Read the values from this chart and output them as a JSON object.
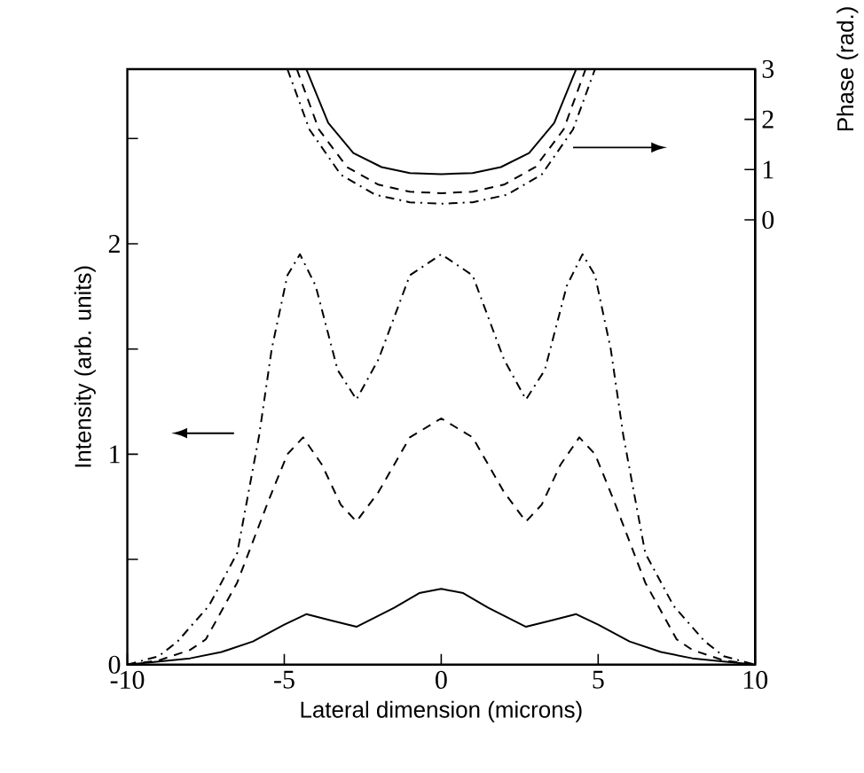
{
  "chart_data": {
    "type": "line",
    "xlabel": "Lateral dimension (microns)",
    "ylabel": "Intensity (arb. units)",
    "y2label": "Phase (rad.)",
    "xlim": [
      -10,
      10
    ],
    "xticks": [
      -10,
      -5,
      0,
      5,
      10
    ],
    "ylim": [
      0,
      2.83
    ],
    "yticks": [
      0,
      {
        "value": 0.5,
        "label": null
      },
      1,
      {
        "value": 1.5,
        "label": null
      },
      2,
      {
        "value": 2.5,
        "label": null
      }
    ],
    "y2lim": [
      -8.85,
      3
    ],
    "y2ticks": [
      0,
      1,
      2,
      3
    ],
    "series": [
      {
        "color": "#000000",
        "line_style": "solid",
        "x": [
          -10,
          -8,
          -7,
          -6,
          -5,
          -4.3,
          -3.5,
          -2.7,
          -1.5,
          -0.7,
          0,
          0.7,
          1.5,
          2.7,
          3.5,
          4.3,
          5,
          6,
          7,
          8,
          10
        ],
        "values": [
          0,
          0.03,
          0.06,
          0.11,
          0.19,
          0.24,
          0.21,
          0.18,
          0.27,
          0.34,
          0.36,
          0.34,
          0.27,
          0.18,
          0.21,
          0.24,
          0.19,
          0.11,
          0.06,
          0.03,
          0
        ]
      },
      {
        "color": "#000000",
        "line_style": "dashed",
        "x": [
          -10,
          -9,
          -8,
          -7.5,
          -6.5,
          -5.5,
          -4.9,
          -4.4,
          -3.8,
          -3.2,
          -2.7,
          -2,
          -1,
          0,
          1,
          2,
          2.7,
          3.2,
          3.8,
          4.4,
          4.9,
          5.5,
          6.5,
          7.5,
          8,
          9,
          10
        ],
        "values": [
          0,
          0.02,
          0.07,
          0.12,
          0.39,
          0.78,
          1.0,
          1.08,
          0.95,
          0.76,
          0.68,
          0.82,
          1.08,
          1.17,
          1.08,
          0.82,
          0.68,
          0.76,
          0.95,
          1.08,
          1.0,
          0.78,
          0.39,
          0.12,
          0.07,
          0.02,
          0
        ]
      },
      {
        "color": "#000000",
        "line_style": "dashdot",
        "x": [
          -10,
          -9,
          -8.4,
          -7.4,
          -6.5,
          -5.8,
          -5.4,
          -4.9,
          -4.5,
          -4,
          -3.3,
          -2.7,
          -2,
          -1,
          0,
          1,
          2,
          2.7,
          3.3,
          4,
          4.5,
          4.9,
          5.4,
          5.8,
          6.5,
          7.4,
          8.4,
          9,
          10
        ],
        "values": [
          0,
          0.04,
          0.11,
          0.28,
          0.53,
          1.09,
          1.5,
          1.85,
          1.95,
          1.8,
          1.4,
          1.26,
          1.45,
          1.85,
          1.95,
          1.85,
          1.45,
          1.26,
          1.4,
          1.8,
          1.95,
          1.85,
          1.5,
          1.09,
          0.53,
          0.28,
          0.11,
          0.04,
          0
        ]
      },
      {
        "color": "#000000",
        "line_style": "solid",
        "axis": "y2",
        "x": [
          -4.3,
          -3.6,
          -2.8,
          -1.9,
          -1,
          0,
          1,
          1.9,
          2.8,
          3.6,
          4.3
        ],
        "values": [
          3,
          1.93,
          1.33,
          1.05,
          0.93,
          0.91,
          0.93,
          1.05,
          1.33,
          1.93,
          3
        ]
      },
      {
        "color": "#000000",
        "line_style": "dashed",
        "axis": "y2",
        "x": [
          -4.6,
          -3.9,
          -3.0,
          -2.0,
          -1,
          0,
          1,
          2.0,
          3.0,
          3.9,
          4.6
        ],
        "values": [
          3,
          1.8,
          1.05,
          0.7,
          0.56,
          0.53,
          0.56,
          0.7,
          1.05,
          1.8,
          3
        ]
      },
      {
        "color": "#000000",
        "line_style": "dashdot",
        "axis": "y2",
        "x": [
          -4.9,
          -4.2,
          -3.2,
          -2.1,
          -1,
          0,
          1,
          2.1,
          3.2,
          4.2,
          4.9
        ],
        "values": [
          3,
          1.8,
          0.9,
          0.5,
          0.35,
          0.32,
          0.35,
          0.5,
          0.9,
          1.8,
          3
        ]
      }
    ]
  }
}
